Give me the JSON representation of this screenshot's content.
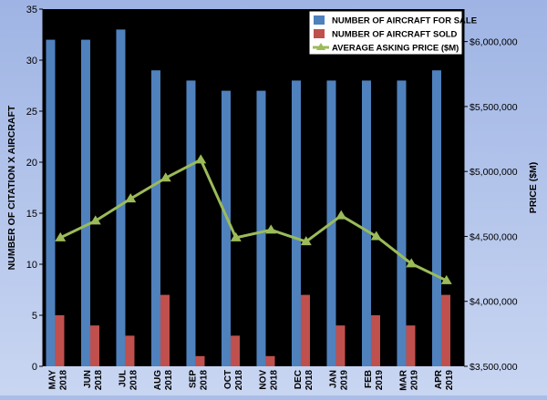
{
  "colors": {
    "background_top": "#9fb4e4",
    "background_bottom": "#c9d6f2",
    "plot_area": "#000000",
    "for_sale": "#4f81bd",
    "sold": "#c0504d",
    "price": "#9bbb59",
    "text": "#000000"
  },
  "chart_data": {
    "type": "bar",
    "categories": [
      [
        "MAY",
        "2018"
      ],
      [
        "JUN",
        "2018"
      ],
      [
        "JUL",
        "2018"
      ],
      [
        "AUG",
        "2018"
      ],
      [
        "SEP",
        "2018"
      ],
      [
        "OCT",
        "2018"
      ],
      [
        "NOV",
        "2018"
      ],
      [
        "DEC",
        "2018"
      ],
      [
        "JAN",
        "2019"
      ],
      [
        "FEB",
        "2019"
      ],
      [
        "MAR",
        "2019"
      ],
      [
        "APR",
        "2019"
      ]
    ],
    "series": [
      {
        "name": "NUMBER OF AIRCRAFT FOR SALE",
        "type": "bar",
        "axis": "left",
        "values": [
          32,
          32,
          33,
          29,
          28,
          27,
          27,
          28,
          28,
          28,
          28,
          29
        ]
      },
      {
        "name": "NUMBER OF AIRCRAFT SOLD",
        "type": "bar",
        "axis": "left",
        "values": [
          5,
          4,
          3,
          7,
          1,
          3,
          1,
          7,
          4,
          5,
          4,
          7
        ]
      },
      {
        "name": "AVERAGE ASKING PRICE ($M)",
        "type": "line",
        "axis": "right",
        "values": [
          4490000,
          4620000,
          4790000,
          4950000,
          5090000,
          4490000,
          4550000,
          4460000,
          4660000,
          4500000,
          4290000,
          4160000
        ]
      }
    ],
    "ylabel": "NUMBER OF CITATION X AIRCRAFT",
    "ylabel_right": "PRICE ($M)",
    "ylim": [
      0,
      35
    ],
    "yticks": [
      0,
      5,
      10,
      15,
      20,
      25,
      30,
      35
    ],
    "ylim_right": [
      3500000,
      6250000
    ],
    "yticks_right": [
      3500000,
      4000000,
      4500000,
      5000000,
      5500000,
      6000000
    ],
    "yticks_right_labels": [
      "$3,500,000",
      "$4,000,000",
      "$4,500,000",
      "$5,000,000",
      "$5,500,000",
      "$6,000,000"
    ],
    "grid": false,
    "legend_position": "top-right"
  }
}
